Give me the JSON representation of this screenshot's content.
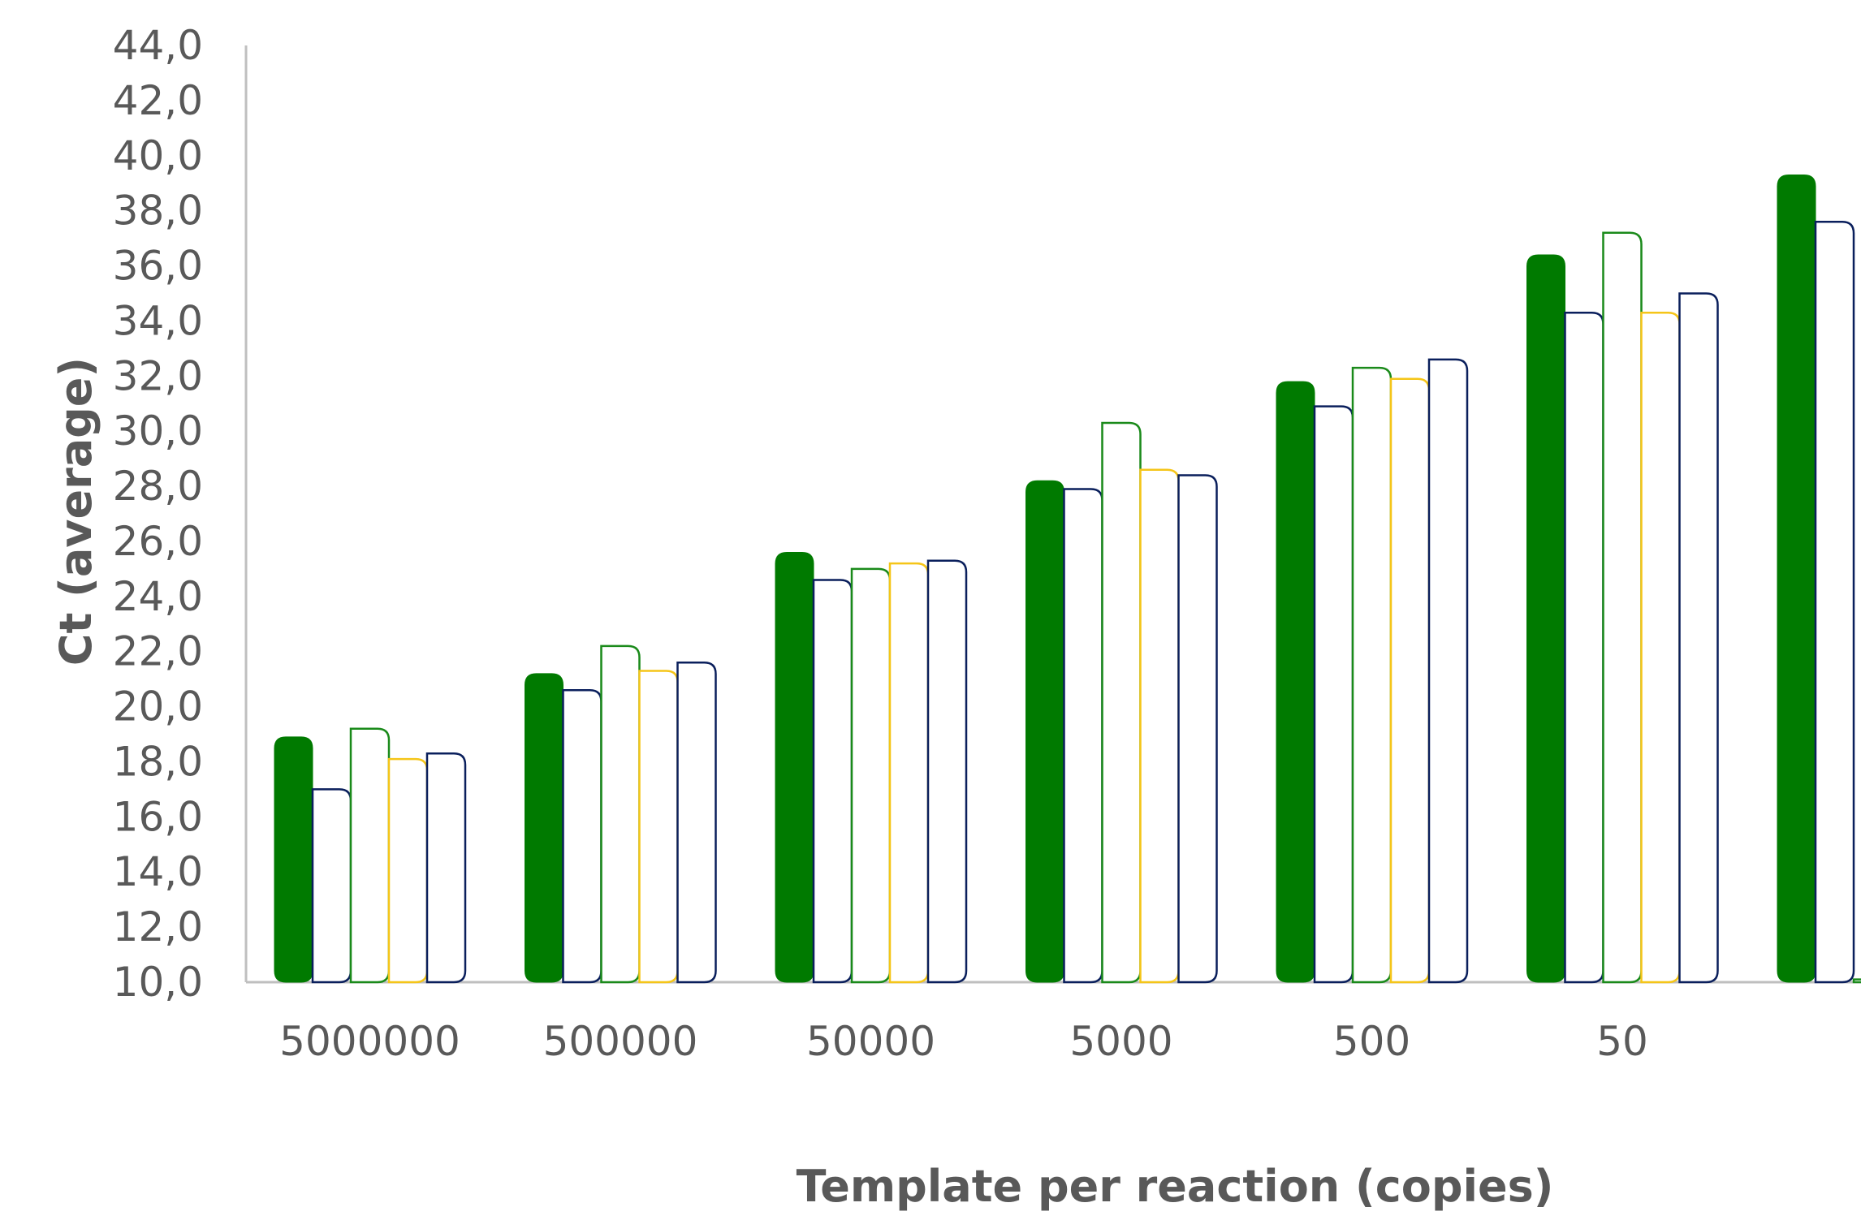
{
  "chart_data": {
    "type": "bar",
    "title": "",
    "xlabel": "Template per reaction (copies)",
    "ylabel": "Ct (average)",
    "ylim": [
      10,
      44
    ],
    "ytick_step": 2,
    "ytick_labels": [
      "10,0",
      "12,0",
      "14,0",
      "16,0",
      "18,0",
      "20,0",
      "22,0",
      "24,0",
      "26,0",
      "28,0",
      "30,0",
      "32,0",
      "34,0",
      "36,0",
      "38,0",
      "40,0",
      "42,0",
      "44,0"
    ],
    "categories": [
      "5000000",
      "500000",
      "50000",
      "5000",
      "500",
      "50",
      ""
    ],
    "series": [
      {
        "color": "#007A00",
        "filled": true,
        "values": [
          18.9,
          21.2,
          25.6,
          28.2,
          31.8,
          36.4,
          39.3
        ]
      },
      {
        "color": "#0A1F5C",
        "filled": false,
        "values": [
          17.0,
          20.6,
          24.6,
          27.9,
          30.9,
          34.3,
          37.6
        ]
      },
      {
        "color": "#1A8A1A",
        "filled": false,
        "values": [
          19.2,
          22.2,
          25.0,
          30.3,
          32.3,
          37.2,
          10.1
        ]
      },
      {
        "color": "#F5C518",
        "filled": false,
        "values": [
          18.1,
          21.3,
          25.2,
          28.6,
          31.9,
          34.3,
          null
        ]
      },
      {
        "color": "#0A1F5C",
        "filled": false,
        "values": [
          18.3,
          21.6,
          25.3,
          28.4,
          32.6,
          35.0,
          null
        ]
      }
    ],
    "grid": false,
    "legend": "none"
  }
}
